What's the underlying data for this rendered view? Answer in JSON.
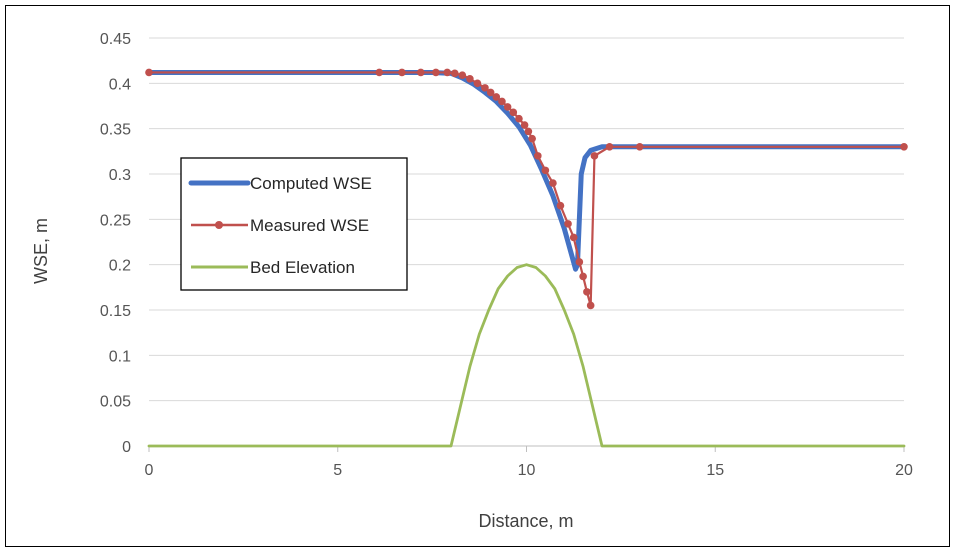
{
  "chart_data": {
    "type": "line",
    "title": "",
    "xlabel": "Distance, m",
    "ylabel": "WSE, m",
    "xlim": [
      0,
      20
    ],
    "ylim": [
      0,
      0.45
    ],
    "x_ticks": [
      0,
      5,
      10,
      15,
      20
    ],
    "y_ticks": [
      0,
      0.05,
      0.1,
      0.15,
      0.2,
      0.25,
      0.3,
      0.35,
      0.4,
      0.45
    ],
    "x_tick_labels": [
      "0",
      "5",
      "10",
      "15",
      "20"
    ],
    "y_tick_labels": [
      "0",
      "0.05",
      "0.1",
      "0.15",
      "0.2",
      "0.25",
      "0.3",
      "0.35",
      "0.4",
      "0.45"
    ],
    "grid": "horizontal",
    "legend_position": "left-middle",
    "series": [
      {
        "name": "Computed WSE",
        "color": "#4472C4",
        "marker": "none",
        "x": [
          0,
          2,
          4,
          6,
          7,
          7.5,
          8,
          8.3,
          8.6,
          8.9,
          9.2,
          9.5,
          9.8,
          10.1,
          10.4,
          10.7,
          11.0,
          11.2,
          11.3,
          11.35,
          11.45,
          11.55,
          11.7,
          12.0,
          13,
          15,
          18,
          20
        ],
        "y": [
          0.412,
          0.412,
          0.412,
          0.412,
          0.412,
          0.412,
          0.411,
          0.406,
          0.399,
          0.39,
          0.38,
          0.367,
          0.352,
          0.332,
          0.305,
          0.276,
          0.24,
          0.21,
          0.195,
          0.2,
          0.3,
          0.318,
          0.326,
          0.33,
          0.33,
          0.33,
          0.33,
          0.33
        ]
      },
      {
        "name": "Measured WSE",
        "color": "#C0504D",
        "marker": "circle",
        "x": [
          0,
          6.1,
          6.7,
          7.2,
          7.6,
          7.9,
          8.1,
          8.3,
          8.5,
          8.7,
          8.9,
          9.05,
          9.2,
          9.35,
          9.5,
          9.65,
          9.8,
          9.95,
          10.05,
          10.15,
          10.3,
          10.5,
          10.7,
          10.9,
          11.1,
          11.25,
          11.4,
          11.5,
          11.6,
          11.7,
          11.8,
          12.2,
          13.0,
          20
        ],
        "y": [
          0.412,
          0.412,
          0.412,
          0.412,
          0.412,
          0.412,
          0.411,
          0.409,
          0.405,
          0.4,
          0.395,
          0.39,
          0.385,
          0.38,
          0.374,
          0.368,
          0.361,
          0.354,
          0.347,
          0.339,
          0.32,
          0.304,
          0.29,
          0.265,
          0.245,
          0.23,
          0.203,
          0.187,
          0.17,
          0.155,
          0.32,
          0.33,
          0.33,
          0.33
        ]
      },
      {
        "name": "Bed Elevation",
        "color": "#9BBB59",
        "marker": "none",
        "x": [
          0,
          7.9,
          8.0,
          8.25,
          8.5,
          8.75,
          9.0,
          9.25,
          9.5,
          9.75,
          10.0,
          10.25,
          10.5,
          10.75,
          11.0,
          11.25,
          11.5,
          11.75,
          12.0,
          12.1,
          20
        ],
        "y": [
          0,
          0,
          0.0,
          0.04375,
          0.0875,
          0.12344,
          0.15,
          0.17344,
          0.1875,
          0.19688,
          0.2,
          0.19688,
          0.1875,
          0.17344,
          0.15,
          0.12344,
          0.0875,
          0.04375,
          0.0,
          0,
          0
        ]
      }
    ]
  },
  "legend": {
    "items": [
      "Computed WSE",
      "Measured WSE",
      "Bed Elevation"
    ]
  }
}
